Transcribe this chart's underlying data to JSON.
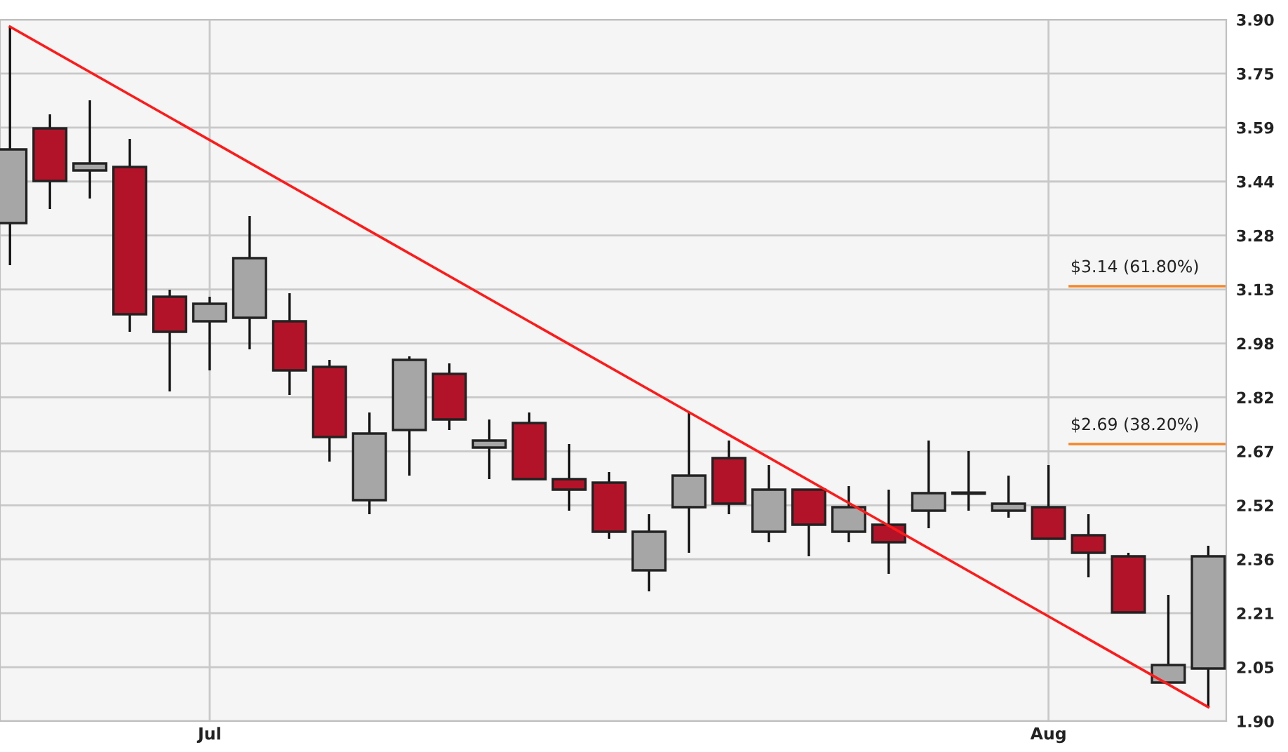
{
  "chart_data": {
    "type": "candlestick",
    "categories": [
      null,
      null,
      null,
      null,
      null,
      "Jul",
      null,
      null,
      null,
      null,
      null,
      null,
      null,
      null,
      null,
      null,
      null,
      null,
      null,
      null,
      null,
      null,
      null,
      null,
      null,
      null,
      "Aug",
      null,
      null,
      null,
      null
    ],
    "ohlc": [
      [
        3.32,
        3.88,
        3.2,
        3.53
      ],
      [
        3.59,
        3.63,
        3.36,
        3.44
      ],
      [
        3.47,
        3.67,
        3.39,
        3.49
      ],
      [
        3.48,
        3.56,
        3.01,
        3.06
      ],
      [
        3.11,
        3.13,
        2.84,
        3.01
      ],
      [
        3.04,
        3.11,
        2.9,
        3.09
      ],
      [
        3.05,
        3.34,
        2.96,
        3.22
      ],
      [
        3.04,
        3.12,
        2.83,
        2.9
      ],
      [
        2.91,
        2.93,
        2.64,
        2.71
      ],
      [
        2.53,
        2.78,
        2.49,
        2.72
      ],
      [
        2.73,
        2.94,
        2.6,
        2.93
      ],
      [
        2.89,
        2.92,
        2.73,
        2.76
      ],
      [
        2.68,
        2.76,
        2.59,
        2.7
      ],
      [
        2.75,
        2.78,
        2.59,
        2.59
      ],
      [
        2.59,
        2.69,
        2.5,
        2.56
      ],
      [
        2.58,
        2.61,
        2.42,
        2.44
      ],
      [
        2.33,
        2.49,
        2.27,
        2.44
      ],
      [
        2.51,
        2.78,
        2.38,
        2.6
      ],
      [
        2.65,
        2.7,
        2.49,
        2.52
      ],
      [
        2.44,
        2.63,
        2.41,
        2.56
      ],
      [
        2.56,
        2.56,
        2.37,
        2.46
      ],
      [
        2.44,
        2.57,
        2.41,
        2.51
      ],
      [
        2.46,
        2.56,
        2.32,
        2.41
      ],
      [
        2.5,
        2.7,
        2.45,
        2.55
      ],
      [
        2.55,
        2.67,
        2.5,
        2.55
      ],
      [
        2.5,
        2.6,
        2.48,
        2.52
      ],
      [
        2.51,
        2.63,
        2.42,
        2.42
      ],
      [
        2.43,
        2.49,
        2.31,
        2.38
      ],
      [
        2.37,
        2.38,
        2.21,
        2.21
      ],
      [
        2.01,
        2.26,
        2.01,
        2.06
      ],
      [
        2.05,
        2.4,
        1.94,
        2.37
      ]
    ],
    "colors": [
      "#a6a6a6",
      "#b31329",
      "#a6a6a6",
      "#b31329",
      "#b31329",
      "#a6a6a6",
      "#a6a6a6",
      "#b31329",
      "#b31329",
      "#a6a6a6",
      "#a6a6a6",
      "#b31329",
      "#a6a6a6",
      "#b31329",
      "#b31329",
      "#b31329",
      "#a6a6a6",
      "#a6a6a6",
      "#b31329",
      "#a6a6a6",
      "#b31329",
      "#a6a6a6",
      "#b31329",
      "#a6a6a6",
      "#a6a6a6",
      "#a6a6a6",
      "#b31329",
      "#b31329",
      "#b31329",
      "#a6a6a6",
      "#a6a6a6"
    ],
    "series": [
      {
        "type": "line",
        "color": "#ff1a1a",
        "values": [
          3.88,
          null,
          null,
          null,
          null,
          null,
          null,
          null,
          null,
          null,
          null,
          null,
          null,
          null,
          null,
          null,
          null,
          null,
          null,
          null,
          null,
          null,
          null,
          null,
          null,
          null,
          null,
          null,
          null,
          null,
          1.94
        ]
      }
    ],
    "ref_lines": [
      {
        "axis": "y",
        "value": 3.14,
        "label": "$3.14 (61.80%)",
        "color": "#f4862a"
      },
      {
        "axis": "y",
        "value": 2.69,
        "label": "$2.69 (38.20%)",
        "color": "#f4862a"
      }
    ],
    "ylim": [
      1.9,
      3.9
    ],
    "yticks": [
      {
        "value": 1.9,
        "label": "1.90"
      },
      {
        "value": 2.0538,
        "label": "2.05"
      },
      {
        "value": 2.2077,
        "label": "2.21"
      },
      {
        "value": 2.3615,
        "label": "2.36"
      },
      {
        "value": 2.5154,
        "label": "2.52"
      },
      {
        "value": 2.6692,
        "label": "2.67"
      },
      {
        "value": 2.8231,
        "label": "2.82"
      },
      {
        "value": 2.9769,
        "label": "2.98"
      },
      {
        "value": 3.1308,
        "label": "3.13"
      },
      {
        "value": 3.2846,
        "label": "3.28"
      },
      {
        "value": 3.4385,
        "label": "3.44"
      },
      {
        "value": 3.5923,
        "label": "3.59"
      },
      {
        "value": 3.7462,
        "label": "3.75"
      },
      {
        "value": 3.9,
        "label": "3.90"
      }
    ],
    "grid": true
  }
}
